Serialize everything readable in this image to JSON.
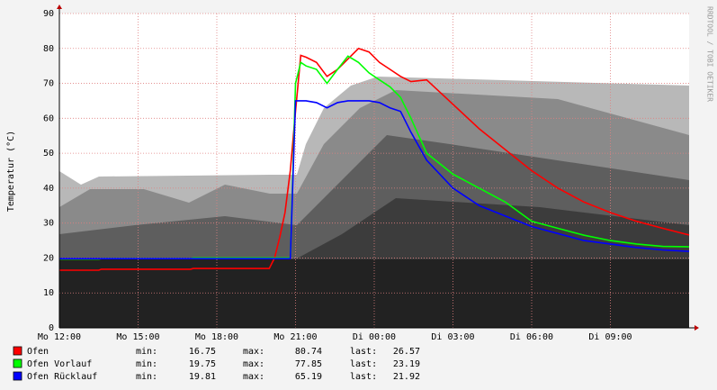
{
  "chart_data": {
    "type": "line",
    "y_label": "Temperatur (°C)",
    "watermark": "RRDTOOL / TOBI OETIKER",
    "x": [
      0,
      1.5,
      1.6,
      5,
      5.1,
      8.0,
      8.2,
      8.4,
      8.6,
      8.8,
      9.0,
      9.2,
      9.4,
      9.8,
      10.2,
      10.6,
      11.0,
      11.4,
      11.8,
      12.2,
      12.6,
      13.0,
      13.4,
      14,
      15,
      16,
      17,
      18,
      19,
      20,
      21,
      22,
      23,
      24
    ],
    "xlim": [
      0,
      24
    ],
    "xticks": [
      {
        "value": 0,
        "label": "Mo 12:00"
      },
      {
        "value": 3,
        "label": "Mo 15:00"
      },
      {
        "value": 6,
        "label": "Mo 18:00"
      },
      {
        "value": 9,
        "label": "Mo 21:00"
      },
      {
        "value": 12,
        "label": "Di 00:00"
      },
      {
        "value": 15,
        "label": "Di 03:00"
      },
      {
        "value": 18,
        "label": "Di 06:00"
      },
      {
        "value": 21,
        "label": "Di 09:00"
      }
    ],
    "ylim": [
      0,
      90
    ],
    "yticks": [
      0,
      10,
      20,
      30,
      40,
      50,
      60,
      70,
      80,
      90
    ],
    "grid": true,
    "stat_labels": [
      "min:",
      "max:",
      "last:"
    ],
    "series": [
      {
        "name": "Ofen",
        "color": "#ff0000",
        "min": 16.75,
        "max": 80.74,
        "last": 26.57,
        "values": [
          16.5,
          16.5,
          16.8,
          16.8,
          17,
          17,
          20,
          26,
          33,
          45,
          62,
          78,
          77.5,
          76,
          72,
          74,
          77,
          80,
          79,
          76,
          74,
          72,
          70.5,
          71,
          64,
          57,
          51,
          45,
          40,
          36,
          33,
          30.5,
          28.5,
          26.6
        ]
      },
      {
        "name": "Ofen Vorlauf",
        "color": "#00ff00",
        "min": 19.75,
        "max": 77.85,
        "last": 23.19,
        "values": [
          19.7,
          19.7,
          19.8,
          19.8,
          20,
          20,
          20,
          20,
          20,
          20,
          70,
          76,
          75,
          74,
          70,
          74,
          77.8,
          76,
          73,
          71,
          69,
          66,
          60,
          50,
          44,
          40,
          36,
          30.5,
          28.5,
          26.5,
          25,
          24,
          23.3,
          23.2
        ]
      },
      {
        "name": "Ofen Rücklauf",
        "color": "#0000ff",
        "min": 19.81,
        "max": 65.19,
        "last": 21.92,
        "values": [
          19.8,
          19.8,
          19.8,
          19.8,
          19.8,
          19.8,
          19.8,
          19.8,
          19.8,
          19.8,
          65,
          65,
          65,
          64.5,
          63,
          64.5,
          65,
          65,
          65,
          64.5,
          63,
          62,
          56,
          48,
          40,
          35,
          32,
          29,
          27,
          25,
          24,
          23,
          22.3,
          21.9
        ]
      }
    ]
  }
}
